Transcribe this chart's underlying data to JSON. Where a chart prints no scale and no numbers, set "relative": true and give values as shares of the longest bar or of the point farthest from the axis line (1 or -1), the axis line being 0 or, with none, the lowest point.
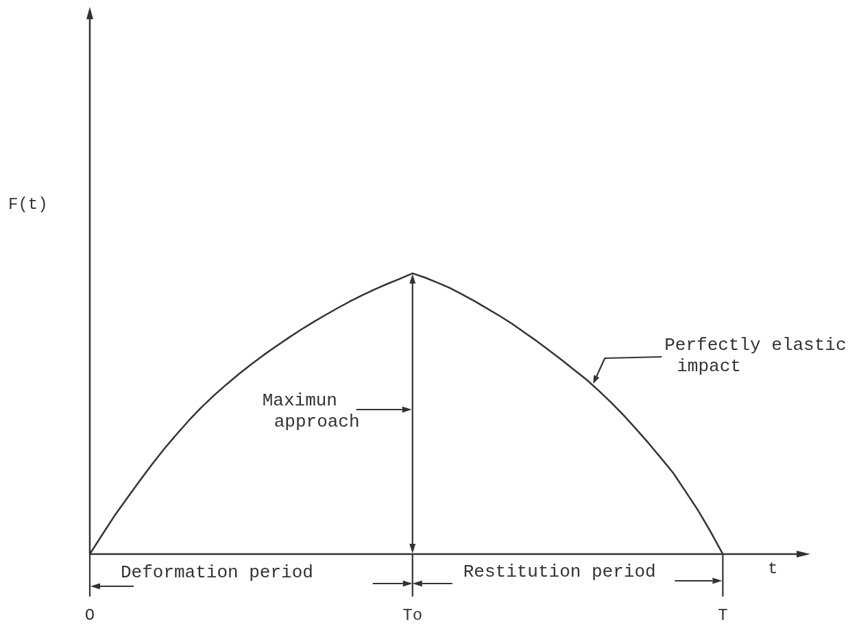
{
  "chart_data": {
    "type": "line",
    "relative": true,
    "xlabel": "t",
    "ylabel": "F(t)",
    "categories": [
      "O",
      null,
      null,
      null,
      null,
      null,
      null,
      null,
      null,
      null,
      null,
      null,
      null,
      null,
      null,
      null,
      null,
      null,
      null,
      null,
      null,
      null,
      null,
      null,
      null,
      null,
      "To",
      null,
      null,
      null,
      null,
      null,
      null,
      null,
      null,
      null,
      null,
      null,
      null,
      null,
      null,
      null,
      null,
      null,
      null,
      null,
      null,
      null,
      null,
      null,
      null,
      "T",
      null,
      null,
      null,
      null,
      null,
      null
    ],
    "series": [
      {
        "name": "Perfectly elastic impact",
        "color": "#333333",
        "values": [
          0,
          0.069,
          0.137,
          0.199,
          0.26,
          0.319,
          0.375,
          0.427,
          0.477,
          0.523,
          0.565,
          0.604,
          0.641,
          0.676,
          0.709,
          0.74,
          0.77,
          0.799,
          0.826,
          0.852,
          0.877,
          0.901,
          0.923,
          0.944,
          0.963,
          0.981,
          1,
          0.985,
          0.967,
          0.948,
          0.925,
          0.901,
          0.875,
          0.849,
          0.821,
          0.79,
          0.759,
          0.726,
          0.692,
          0.657,
          0.622,
          0.582,
          0.54,
          0.495,
          0.446,
          0.396,
          0.343,
          0.289,
          0.223,
          0.156,
          0.081,
          0,
          null,
          null,
          null,
          null,
          null,
          null
        ]
      }
    ],
    "annotations": [
      "Maximun approach",
      "Deformation period",
      "Restitution period"
    ]
  }
}
